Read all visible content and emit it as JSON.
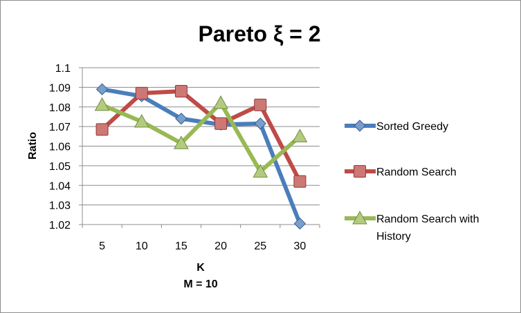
{
  "chart_data": {
    "type": "line",
    "title": "Pareto ξ = 2",
    "xlabel_lines": [
      "K",
      "M = 10"
    ],
    "ylabel": "Ratio",
    "categories": [
      "5",
      "10",
      "15",
      "20",
      "25",
      "30"
    ],
    "ylim": [
      1.02,
      1.1
    ],
    "yticks": [
      "1.02",
      "1.03",
      "1.04",
      "1.05",
      "1.06",
      "1.07",
      "1.08",
      "1.09",
      "1.1"
    ],
    "grid": "horizontal",
    "legend_position": "right",
    "series": [
      {
        "name": "Sorted Greedy",
        "color": "#4a7ebb",
        "marker": "diamond",
        "values": [
          1.089,
          1.0855,
          1.074,
          1.071,
          1.0715,
          1.0205
        ]
      },
      {
        "name": "Random Search",
        "color": "#be4b48",
        "marker": "square",
        "values": [
          1.0685,
          1.087,
          1.088,
          1.0715,
          1.081,
          1.042
        ]
      },
      {
        "name": "Random Search with History",
        "name_lines": [
          " Random Search with",
          "History"
        ],
        "color": "#98b954",
        "marker": "triangle",
        "values": [
          1.081,
          1.0725,
          1.0615,
          1.082,
          1.047,
          1.065
        ]
      }
    ]
  }
}
